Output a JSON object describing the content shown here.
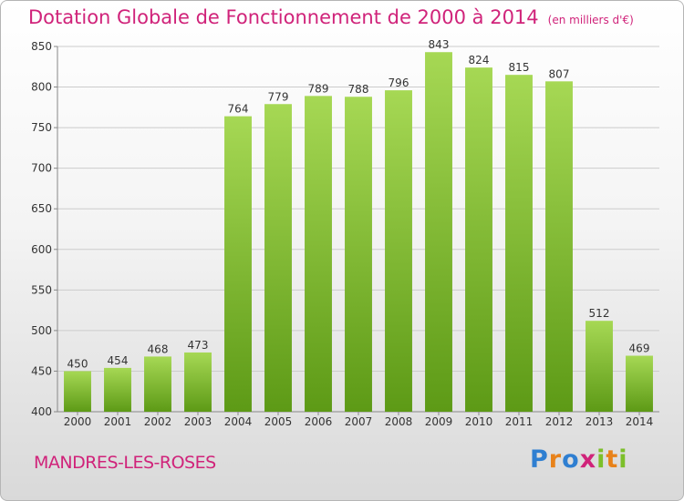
{
  "header": {
    "title": "Dotation Globale de Fonctionnement de 2000 à 2014",
    "unit": "(en milliers d'€)"
  },
  "footer": {
    "commune": "MANDRES-LES-ROSES",
    "logo": [
      "P",
      "r",
      "o",
      "x",
      "i",
      "t",
      "i"
    ]
  },
  "colors": {
    "title": "#d0237a",
    "bar_light": "#a6d854",
    "bar_dark": "#5d9a16",
    "grid": "#cccccc",
    "logo": [
      "#2f7fd1",
      "#e8821a",
      "#2f7fd1",
      "#d0237a",
      "#7cbf2a",
      "#e8821a",
      "#7cbf2a"
    ]
  },
  "chart_data": {
    "type": "bar",
    "title": "Dotation Globale de Fonctionnement de 2000 à 2014",
    "subtitle": "(en milliers d'€)",
    "categories": [
      "2000",
      "2001",
      "2002",
      "2003",
      "2004",
      "2005",
      "2006",
      "2007",
      "2008",
      "2009",
      "2010",
      "2011",
      "2012",
      "2013",
      "2014"
    ],
    "values": [
      450,
      454,
      468,
      473,
      764,
      779,
      789,
      788,
      796,
      843,
      824,
      815,
      807,
      512,
      469
    ],
    "ylim": [
      400,
      850
    ],
    "yticks": [
      400,
      450,
      500,
      550,
      600,
      650,
      700,
      750,
      800,
      850
    ],
    "grid": true,
    "data_labels": true
  }
}
